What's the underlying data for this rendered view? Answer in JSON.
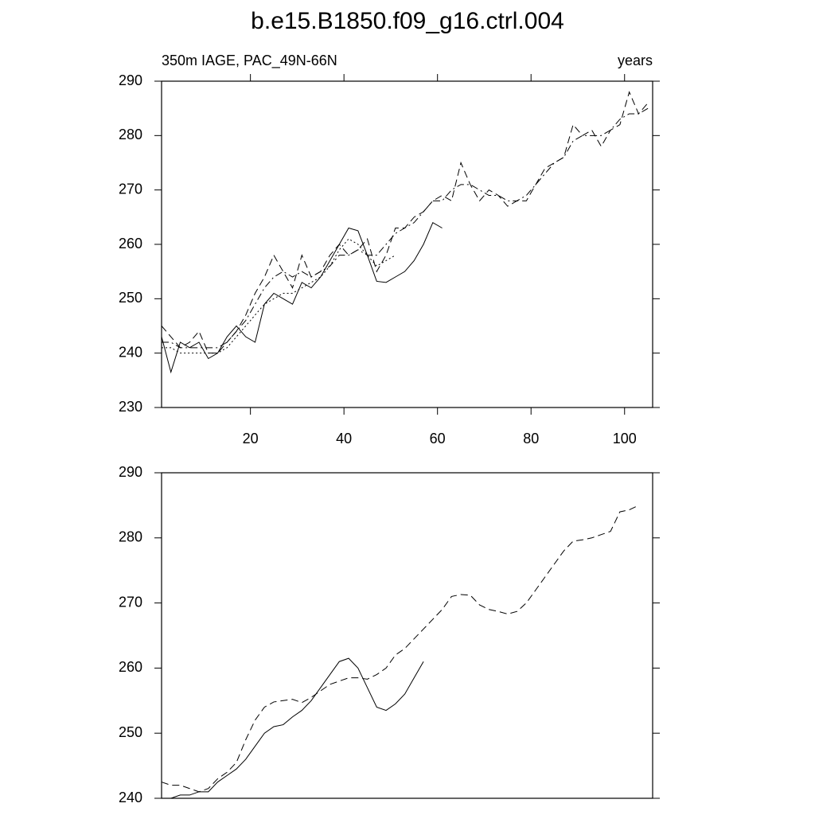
{
  "chart_data": [
    {
      "type": "line",
      "title": "b.e15.B1850.f09_g16.ctrl.004",
      "subtitle": "350m IAGE, PAC_49N-66N",
      "right_label": "years",
      "x": [
        1,
        3,
        5,
        7,
        9,
        11,
        13,
        15,
        17,
        19,
        21,
        23,
        25,
        27,
        29,
        31,
        33,
        35,
        37,
        39,
        41,
        43,
        45,
        47,
        49,
        51,
        53,
        55,
        57,
        59,
        61,
        63,
        65,
        67,
        69,
        71,
        73,
        75,
        77,
        79,
        81,
        83,
        85,
        87,
        89,
        91,
        93,
        95,
        97,
        99,
        101,
        103,
        105
      ],
      "xlim": [
        1,
        106
      ],
      "xticks": [
        20,
        40,
        60,
        80,
        100
      ],
      "ylim": [
        230,
        290
      ],
      "yticks": [
        230,
        240,
        250,
        260,
        270,
        280,
        290
      ],
      "series": [
        {
          "color": "#000000",
          "dash": "solid",
          "values": [
            243,
            236.5,
            242,
            241,
            242,
            239,
            240,
            243,
            245,
            243,
            242,
            249,
            251,
            250,
            249,
            253,
            252,
            254,
            257,
            260,
            263,
            262.5,
            258,
            253.2,
            253,
            254,
            255,
            257,
            260,
            264,
            263,
            null,
            null,
            null,
            null,
            null,
            null,
            null,
            null,
            null,
            null,
            null,
            null,
            null,
            null,
            null,
            null,
            null,
            null,
            null,
            null,
            null,
            null
          ]
        },
        {
          "color": "#000000",
          "dash": "dashed",
          "values": [
            245,
            243,
            241,
            242,
            244,
            240,
            240,
            242,
            244,
            247,
            251,
            254,
            258,
            255,
            252,
            258,
            254,
            255,
            258,
            260,
            258,
            259,
            261,
            255,
            258,
            263,
            263,
            265,
            266,
            268,
            269,
            268,
            275,
            271,
            268,
            270,
            269,
            267,
            268,
            268,
            271,
            274,
            275,
            276,
            282,
            280,
            281,
            278,
            281,
            282,
            288,
            284,
            286
          ]
        },
        {
          "color": "#000000",
          "dash": "dashdot",
          "values": [
            242,
            242,
            241,
            241,
            241,
            241,
            241,
            242,
            244,
            246,
            249,
            252,
            254,
            255,
            254,
            255,
            254,
            255,
            256,
            258,
            258,
            259,
            258,
            258,
            260,
            262,
            263,
            264,
            266,
            268,
            268,
            270,
            271,
            271,
            270,
            269,
            269,
            268,
            268,
            269,
            271,
            273,
            275,
            276,
            279,
            280,
            280,
            280,
            281,
            283,
            284,
            284,
            285
          ]
        },
        {
          "color": "#000000",
          "dash": "dotted",
          "values": [
            241,
            241,
            240,
            240,
            240,
            240,
            240,
            241,
            243,
            245,
            247,
            249,
            250,
            251,
            251,
            252,
            253,
            254,
            256,
            259,
            261,
            260,
            258,
            256,
            257,
            258,
            null,
            null,
            null,
            null,
            null,
            null,
            null,
            null,
            null,
            null,
            null,
            null,
            null,
            null,
            null,
            null,
            null,
            null,
            null,
            null,
            null,
            null,
            null,
            null,
            null,
            null,
            null
          ]
        }
      ]
    },
    {
      "type": "line",
      "x": [
        1,
        3,
        5,
        7,
        9,
        11,
        13,
        15,
        17,
        19,
        21,
        23,
        25,
        27,
        29,
        31,
        33,
        35,
        37,
        39,
        41,
        43,
        45,
        47,
        49,
        51,
        53,
        55,
        57,
        59,
        61,
        63,
        65,
        67,
        69,
        71,
        73,
        75,
        77,
        79,
        81,
        83,
        85,
        87,
        89,
        91,
        93,
        95,
        97,
        99,
        101,
        103,
        105
      ],
      "xlim": [
        1,
        106
      ],
      "ylim": [
        240,
        290
      ],
      "yticks": [
        240,
        250,
        260,
        270,
        280,
        290
      ],
      "series": [
        {
          "color": "#000000",
          "dash": "solid",
          "values": [
            240,
            240,
            240.5,
            240.5,
            241,
            241,
            242.5,
            243.5,
            244.5,
            246,
            248,
            250,
            251,
            251.3,
            252.5,
            253.5,
            255,
            257,
            259,
            261,
            261.5,
            260,
            257,
            254,
            253.5,
            254.5,
            256,
            258.5,
            261,
            null,
            null,
            null,
            null,
            null,
            null,
            null,
            null,
            null,
            null,
            null,
            null,
            null,
            null,
            null,
            null,
            null,
            null,
            null,
            null,
            null,
            null,
            null,
            null
          ]
        },
        {
          "color": "#000000",
          "dash": "dashed",
          "values": [
            242.5,
            242,
            242,
            241.5,
            241,
            241.5,
            243,
            244,
            245.5,
            249,
            252,
            254,
            254.8,
            255,
            255.2,
            254.7,
            255.5,
            256.5,
            257.5,
            258,
            258.5,
            258.5,
            258.3,
            259,
            260,
            262,
            263,
            264.5,
            266,
            267.5,
            269,
            271,
            271.3,
            271.2,
            269.7,
            269,
            268.7,
            268.3,
            268.7,
            270,
            272,
            274,
            276,
            278,
            279.5,
            279.7,
            280,
            280.5,
            281,
            284,
            284.3,
            285,
            null
          ]
        }
      ]
    }
  ]
}
